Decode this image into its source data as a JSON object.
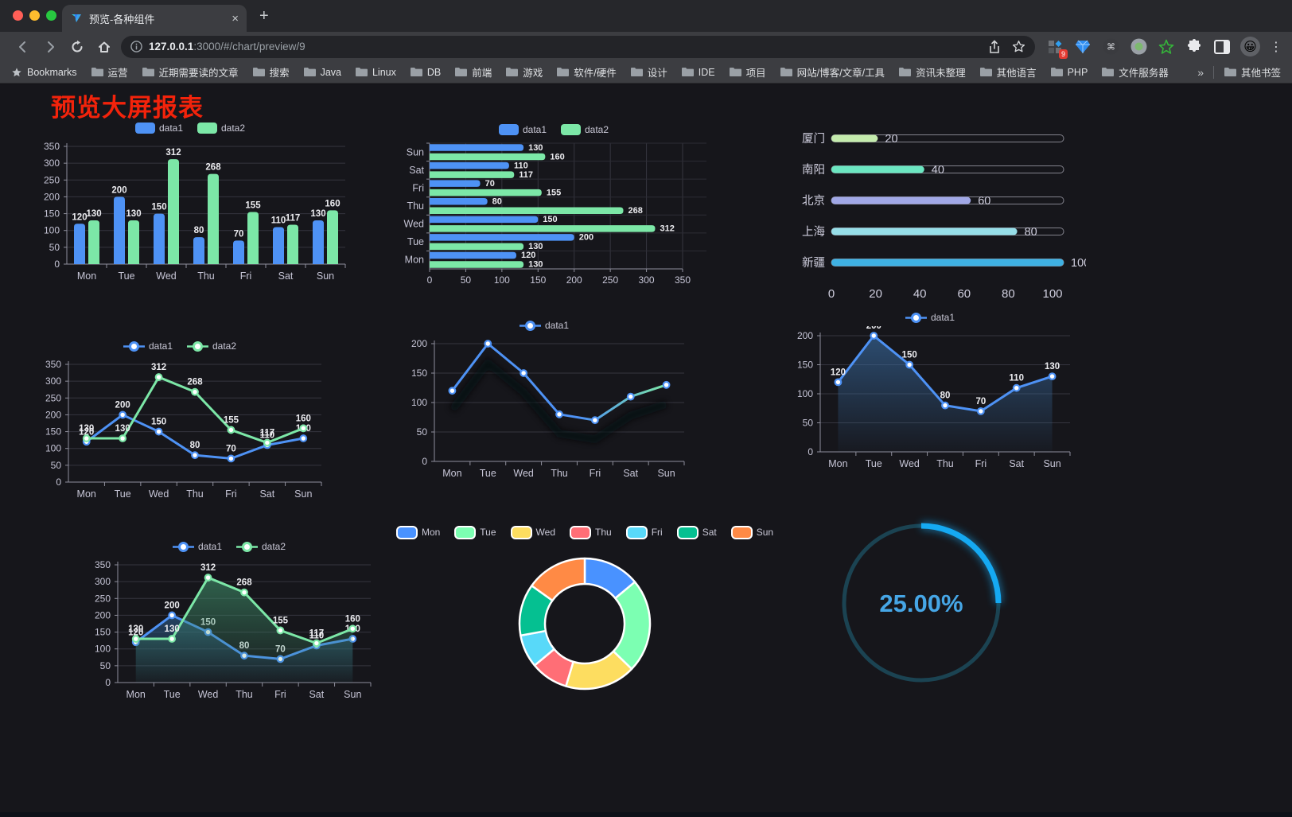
{
  "browser": {
    "traffic_lights": {
      "close": "#ff5f57",
      "minimize": "#febc2e",
      "zoom": "#28c840"
    },
    "tab": {
      "title": "预览-各种组件",
      "close_glyph": "×",
      "new_tab_glyph": "+"
    },
    "address": {
      "host": "127.0.0.1",
      "rest": ":3000/#/chart/preview/9"
    },
    "extension_badge": "9",
    "menu_glyph": "⋮",
    "bookmarks": {
      "star_label": "Bookmarks",
      "folders": [
        "运营",
        "近期需要读的文章",
        "搜索",
        "Java",
        "Linux",
        "DB",
        "前端",
        "游戏",
        "软件/硬件",
        "设计",
        "IDE",
        "项目",
        "网站/博客/文章/工具",
        "资讯未整理",
        "其他语言",
        "PHP",
        "文件服务器"
      ],
      "overflow_glyph": "»",
      "other_bookmarks": "其他书签"
    },
    "icon_names": [
      "back-icon",
      "forward-icon",
      "reload-icon",
      "home-icon",
      "info-icon",
      "share-icon",
      "star-icon",
      "extensions-grid-icon",
      "gem-icon",
      "command-icon",
      "record-icon",
      "green-star-icon",
      "puzzle-icon",
      "sidepanel-icon",
      "avatar-emoji",
      "menu-icon",
      "folder-icon"
    ]
  },
  "page": {
    "title": "预览大屏报表",
    "title_color": "#f3230b"
  },
  "chart_data": [
    {
      "type": "bar",
      "categories": [
        "Mon",
        "Tue",
        "Wed",
        "Thu",
        "Fri",
        "Sat",
        "Sun"
      ],
      "series": [
        {
          "name": "data1",
          "color": "#4e92f5",
          "values": [
            120,
            200,
            150,
            80,
            70,
            110,
            130
          ]
        },
        {
          "name": "data2",
          "color": "#7ce7a7",
          "values": [
            130,
            130,
            312,
            268,
            155,
            117,
            160
          ]
        }
      ],
      "ylim": [
        0,
        350
      ],
      "ytick_step": 50,
      "grid": true,
      "legend_position": "top",
      "legend_type": "rect",
      "value_labels": true
    },
    {
      "type": "hbar",
      "categories": [
        "Sun",
        "Sat",
        "Fri",
        "Thu",
        "Wed",
        "Tue",
        "Mon"
      ],
      "series": [
        {
          "name": "data1",
          "color": "#4e92f5",
          "values": [
            130,
            110,
            70,
            80,
            150,
            200,
            120
          ]
        },
        {
          "name": "data2",
          "color": "#7ce7a7",
          "values": [
            160,
            117,
            155,
            268,
            312,
            130,
            130
          ]
        }
      ],
      "xlim": [
        0,
        350
      ],
      "xtick_step": 50,
      "grid": true,
      "legend_position": "top",
      "legend_type": "rect",
      "value_labels": true
    },
    {
      "type": "progress_bars",
      "items": [
        {
          "label": "厦门",
          "value": 20,
          "color": "#c4ebad"
        },
        {
          "label": "南阳",
          "value": 40,
          "color": "#6be6c1"
        },
        {
          "label": "北京",
          "value": 60,
          "color": "#a0a7e6"
        },
        {
          "label": "上海",
          "value": 80,
          "color": "#96dee8"
        },
        {
          "label": "新疆",
          "value": 100,
          "color": "#3fb1e3"
        }
      ],
      "xticks": [
        0,
        20,
        40,
        60,
        80,
        100
      ],
      "xlim": [
        0,
        100
      ]
    },
    {
      "type": "line",
      "categories": [
        "Mon",
        "Tue",
        "Wed",
        "Thu",
        "Fri",
        "Sat",
        "Sun"
      ],
      "series": [
        {
          "name": "data1",
          "color": "#4e92f5",
          "values": [
            120,
            200,
            150,
            80,
            70,
            110,
            130
          ]
        },
        {
          "name": "data2",
          "color": "#7ce7a7",
          "values": [
            130,
            130,
            312,
            268,
            155,
            117,
            160
          ]
        }
      ],
      "ylim": [
        0,
        350
      ],
      "ytick_step": 50,
      "grid": true,
      "legend_position": "top",
      "legend_type": "linedot",
      "value_labels": true
    },
    {
      "type": "line",
      "categories": [
        "Mon",
        "Tue",
        "Wed",
        "Thu",
        "Fri",
        "Sat",
        "Sun"
      ],
      "series": [
        {
          "name": "data1",
          "color": "#4e92f5",
          "gradient_to": "#7ce7a7",
          "shadow": true,
          "values": [
            120,
            200,
            150,
            80,
            70,
            110,
            130
          ]
        }
      ],
      "ylim": [
        0,
        200
      ],
      "ytick_step": 50,
      "grid": true,
      "legend_position": "top",
      "legend_type": "linedot",
      "value_labels": false
    },
    {
      "type": "line",
      "categories": [
        "Mon",
        "Tue",
        "Wed",
        "Thu",
        "Fri",
        "Sat",
        "Sun"
      ],
      "series": [
        {
          "name": "data1",
          "color": "#4e92f5",
          "area": "#3a6ea5",
          "values": [
            120,
            200,
            150,
            80,
            70,
            110,
            130
          ]
        }
      ],
      "ylim": [
        0,
        200
      ],
      "ytick_step": 50,
      "grid": true,
      "legend_position": "top",
      "legend_type": "linedot",
      "value_labels": true
    },
    {
      "type": "line",
      "categories": [
        "Mon",
        "Tue",
        "Wed",
        "Thu",
        "Fri",
        "Sat",
        "Sun"
      ],
      "series": [
        {
          "name": "data1",
          "color": "#4e92f5",
          "area": "#2c5e8f",
          "values": [
            120,
            200,
            150,
            80,
            70,
            110,
            130
          ]
        },
        {
          "name": "data2",
          "color": "#7ce7a7",
          "area": "#3f8f6a",
          "values": [
            130,
            130,
            312,
            268,
            155,
            117,
            160
          ]
        }
      ],
      "ylim": [
        0,
        350
      ],
      "ytick_step": 50,
      "grid": true,
      "legend_position": "top",
      "legend_type": "linedot",
      "value_labels": true
    },
    {
      "type": "pie",
      "donut": true,
      "legend_position": "top",
      "legend_type": "pierect",
      "items": [
        {
          "label": "Mon",
          "value": 120,
          "color": "#4992ff"
        },
        {
          "label": "Tue",
          "value": 200,
          "color": "#7cffb2"
        },
        {
          "label": "Wed",
          "value": 150,
          "color": "#fddd60"
        },
        {
          "label": "Thu",
          "value": 80,
          "color": "#ff6e76"
        },
        {
          "label": "Fri",
          "value": 70,
          "color": "#58d9f9"
        },
        {
          "label": "Sat",
          "value": 110,
          "color": "#05c091"
        },
        {
          "label": "Sun",
          "value": 130,
          "color": "#ff8a45"
        }
      ]
    },
    {
      "type": "gauge_ring",
      "percent": 25,
      "text": "25.00%",
      "arc_color": "#15a9f2",
      "track_color": "#1b4352",
      "text_color": "#46a6e6"
    }
  ]
}
